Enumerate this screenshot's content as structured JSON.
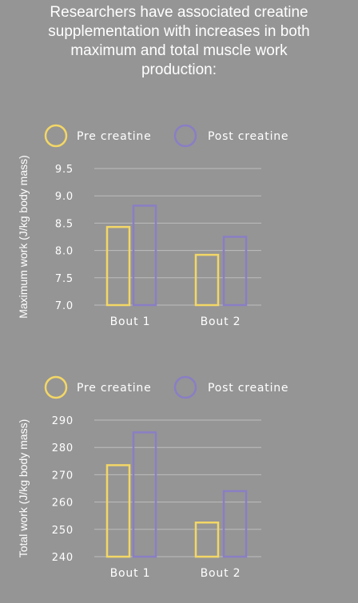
{
  "title_lines": [
    "Researchers have associated creatine",
    "supplementation with increases in both",
    "maximum and total muscle work",
    "production:"
  ],
  "colors": {
    "background": "#959595",
    "pre": "#f3d766",
    "post": "#8a7ec4",
    "grid": "#bdbdbd",
    "text": "#ffffff"
  },
  "chart_data": [
    {
      "type": "bar",
      "ylabel": "Maximum work (J/kg body mass)",
      "categories": [
        "Bout 1",
        "Bout 2"
      ],
      "series": [
        {
          "name": "Pre creatine",
          "values": [
            8.43,
            7.92
          ]
        },
        {
          "name": "Post creatine",
          "values": [
            8.82,
            8.25
          ]
        }
      ],
      "yticks": [
        "9.5",
        "9.0",
        "8.5",
        "8.0",
        "7.5",
        "7.0"
      ],
      "ylim": [
        7.0,
        9.5
      ],
      "legend": "top",
      "grid": true
    },
    {
      "type": "bar",
      "ylabel": "Total work (J/kg body mass)",
      "categories": [
        "Bout 1",
        "Bout 2"
      ],
      "series": [
        {
          "name": "Pre creatine",
          "values": [
            273.5,
            252.5
          ]
        },
        {
          "name": "Post creatine",
          "values": [
            285.5,
            264
          ]
        }
      ],
      "yticks": [
        "290",
        "280",
        "270",
        "260",
        "250",
        "240"
      ],
      "ylim": [
        240,
        290
      ],
      "legend": "top",
      "grid": true
    }
  ]
}
